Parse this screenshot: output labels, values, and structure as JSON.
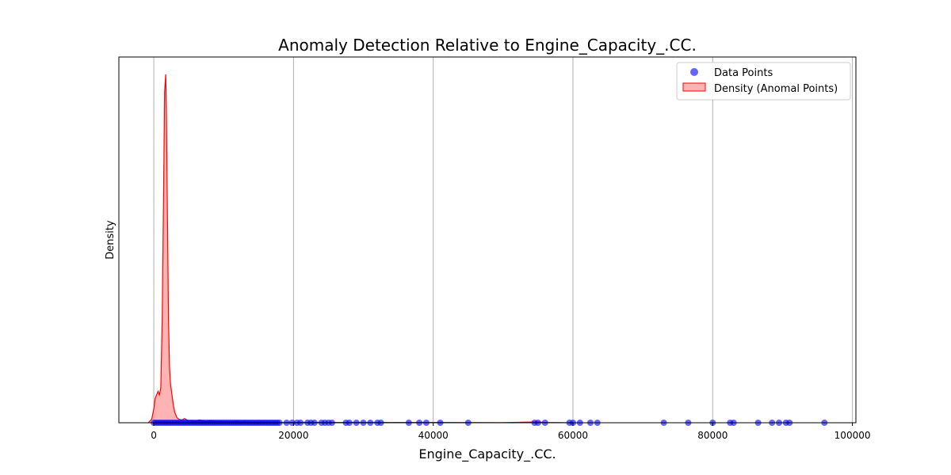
{
  "chart_data": {
    "type": "scatter",
    "title": "Anomaly Detection Relative to Engine_Capacity_.CC.",
    "xlabel": "Engine_Capacity_.CC.",
    "ylabel": "Density",
    "xlim": [
      -5000,
      100500
    ],
    "ylim": [
      0,
      1
    ],
    "x_ticks": [
      0,
      20000,
      40000,
      60000,
      80000,
      100000
    ],
    "x_tick_labels": [
      "0",
      "20000",
      "40000",
      "60000",
      "80000",
      "100000"
    ],
    "grid": "vertical",
    "legend_position": "top-right",
    "colors": {
      "points": "#0000ff",
      "density_fill": "#ff9999",
      "density_line": "#ff0000"
    },
    "series": [
      {
        "name": "Data Points",
        "type": "scatter",
        "x": [
          0,
          300,
          600,
          900,
          1200,
          1500,
          1800,
          2100,
          2400,
          2700,
          3000,
          3300,
          3600,
          3900,
          4200,
          4500,
          4800,
          5100,
          5400,
          5700,
          6000,
          6300,
          6600,
          6900,
          7200,
          7500,
          7800,
          8100,
          8400,
          8700,
          9000,
          9300,
          9600,
          9900,
          10200,
          10500,
          10800,
          11100,
          11400,
          11700,
          12000,
          12300,
          12600,
          12900,
          13200,
          13500,
          13800,
          14100,
          14400,
          14700,
          15000,
          15300,
          15600,
          15900,
          16200,
          16500,
          16800,
          17100,
          17400,
          17700,
          18000,
          19000,
          19800,
          20500,
          21000,
          22000,
          22500,
          23000,
          24000,
          24500,
          25000,
          25500,
          27500,
          28000,
          29000,
          30000,
          31000,
          32000,
          32500,
          36500,
          38000,
          39000,
          41000,
          45000,
          54500,
          55000,
          56000,
          59500,
          60000,
          61000,
          62500,
          63500,
          73000,
          76500,
          80000,
          82500,
          83000,
          86500,
          88500,
          89500,
          90500,
          91000,
          96000
        ],
        "y": [
          0,
          0,
          0,
          0,
          0,
          0,
          0,
          0,
          0,
          0,
          0,
          0,
          0,
          0,
          0,
          0,
          0,
          0,
          0,
          0,
          0,
          0,
          0,
          0,
          0,
          0,
          0,
          0,
          0,
          0,
          0,
          0,
          0,
          0,
          0,
          0,
          0,
          0,
          0,
          0,
          0,
          0,
          0,
          0,
          0,
          0,
          0,
          0,
          0,
          0,
          0,
          0,
          0,
          0,
          0,
          0,
          0,
          0,
          0,
          0,
          0,
          0,
          0,
          0,
          0,
          0,
          0,
          0,
          0,
          0,
          0,
          0,
          0,
          0,
          0,
          0,
          0,
          0,
          0,
          0,
          0,
          0,
          0,
          0,
          0,
          0,
          0,
          0,
          0,
          0,
          0,
          0,
          0,
          0,
          0,
          0,
          0,
          0,
          0,
          0,
          0,
          0,
          0
        ]
      },
      {
        "name": "Density (Anomal Points)",
        "type": "area",
        "x": [
          -800,
          -300,
          0,
          200,
          400,
          600,
          800,
          1000,
          1200,
          1400,
          1550,
          1700,
          1800,
          1900,
          2000,
          2100,
          2250,
          2400,
          2600,
          2800,
          3000,
          3300,
          3600,
          4000,
          4400,
          5000,
          5500,
          6000,
          6500,
          7000,
          7500,
          8000,
          9000,
          10000,
          11000,
          12000,
          12500,
          13000,
          13500,
          14000,
          15000,
          16000,
          20000,
          30000,
          40000,
          50000,
          54000,
          55000,
          56000,
          60000
        ],
        "y": [
          0,
          0.01,
          0.04,
          0.07,
          0.08,
          0.09,
          0.08,
          0.1,
          0.3,
          0.65,
          0.95,
          1.0,
          0.9,
          0.7,
          0.5,
          0.3,
          0.16,
          0.11,
          0.08,
          0.05,
          0.03,
          0.015,
          0.01,
          0.008,
          0.012,
          0.005,
          0.006,
          0.004,
          0.008,
          0.006,
          0.003,
          0.006,
          0.004,
          0.003,
          0.002,
          0.004,
          0.001,
          0.003,
          0.001,
          0.001,
          0.0005,
          0,
          0.001,
          0.001,
          0.001,
          0.0005,
          0.002,
          0.002,
          0.001,
          0
        ]
      }
    ]
  }
}
